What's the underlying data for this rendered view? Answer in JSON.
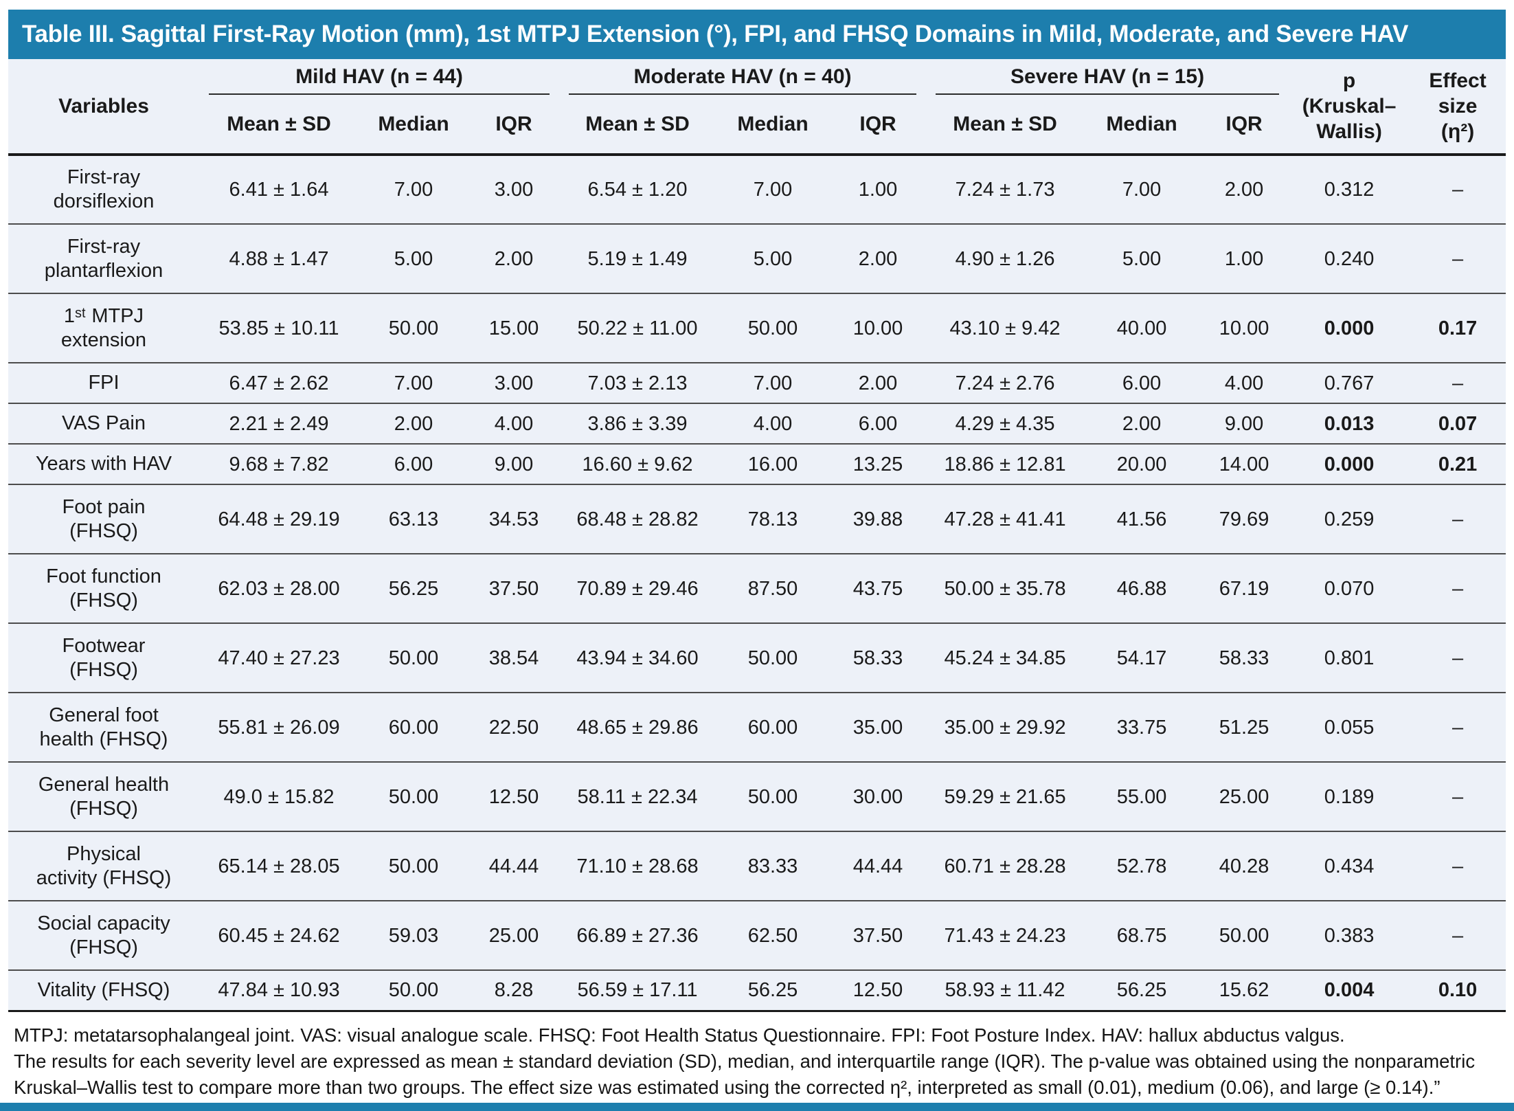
{
  "title": "Table III. Sagittal First-Ray Motion (mm), 1st MTPJ Extension (°), FPI, and FHSQ Domains in Mild, Moderate, and Severe HAV",
  "colors": {
    "accent_blue": "#1d7ead",
    "table_bg": "#edf1f8",
    "text": "#1a1a1a"
  },
  "header": {
    "variables": "Variables",
    "groups": [
      "Mild HAV (n = 44)",
      "Moderate HAV (n = 40)",
      "Severe HAV (n = 15)"
    ],
    "sub": [
      "Mean ± SD",
      "Median",
      "IQR"
    ],
    "p_lines": [
      "p",
      "(Kruskal–",
      "Wallis)"
    ],
    "effect_lines": [
      "Effect",
      "size",
      "(η²)"
    ]
  },
  "rows": [
    {
      "variable": "First-ray\ndorsiflexion",
      "mild": [
        "6.41 ± 1.64",
        "7.00",
        "3.00"
      ],
      "moderate": [
        "6.54 ± 1.20",
        "7.00",
        "1.00"
      ],
      "severe": [
        "7.24 ± 1.73",
        "7.00",
        "2.00"
      ],
      "p": "0.312",
      "effect": "–",
      "significant": false
    },
    {
      "variable": "First-ray\nplantarflexion",
      "mild": [
        "4.88 ± 1.47",
        "5.00",
        "2.00"
      ],
      "moderate": [
        "5.19 ± 1.49",
        "5.00",
        "2.00"
      ],
      "severe": [
        "4.90 ± 1.26",
        "5.00",
        "1.00"
      ],
      "p": "0.240",
      "effect": "–",
      "significant": false
    },
    {
      "variable": "1ˢᵗ MTPJ\nextension",
      "mild": [
        "53.85 ± 10.11",
        "50.00",
        "15.00"
      ],
      "moderate": [
        "50.22 ± 11.00",
        "50.00",
        "10.00"
      ],
      "severe": [
        "43.10 ± 9.42",
        "40.00",
        "10.00"
      ],
      "p": "0.000",
      "effect": "0.17",
      "significant": true
    },
    {
      "variable": "FPI",
      "mild": [
        "6.47 ± 2.62",
        "7.00",
        "3.00"
      ],
      "moderate": [
        "7.03 ± 2.13",
        "7.00",
        "2.00"
      ],
      "severe": [
        "7.24 ± 2.76",
        "6.00",
        "4.00"
      ],
      "p": "0.767",
      "effect": "–",
      "significant": false
    },
    {
      "variable": "VAS Pain",
      "mild": [
        "2.21 ± 2.49",
        "2.00",
        "4.00"
      ],
      "moderate": [
        "3.86 ± 3.39",
        "4.00",
        "6.00"
      ],
      "severe": [
        "4.29 ± 4.35",
        "2.00",
        "9.00"
      ],
      "p": "0.013",
      "effect": "0.07",
      "significant": true
    },
    {
      "variable": "Years with HAV",
      "mild": [
        "9.68 ± 7.82",
        "6.00",
        "9.00"
      ],
      "moderate": [
        "16.60 ± 9.62",
        "16.00",
        "13.25"
      ],
      "severe": [
        "18.86 ± 12.81",
        "20.00",
        "14.00"
      ],
      "p": "0.000",
      "effect": "0.21",
      "significant": true
    },
    {
      "variable": "Foot pain\n(FHSQ)",
      "mild": [
        "64.48 ± 29.19",
        "63.13",
        "34.53"
      ],
      "moderate": [
        "68.48 ± 28.82",
        "78.13",
        "39.88"
      ],
      "severe": [
        "47.28 ± 41.41",
        "41.56",
        "79.69"
      ],
      "p": "0.259",
      "effect": "–",
      "significant": false
    },
    {
      "variable": "Foot function\n(FHSQ)",
      "mild": [
        "62.03 ± 28.00",
        "56.25",
        "37.50"
      ],
      "moderate": [
        "70.89 ± 29.46",
        "87.50",
        "43.75"
      ],
      "severe": [
        "50.00 ± 35.78",
        "46.88",
        "67.19"
      ],
      "p": "0.070",
      "effect": "–",
      "significant": false
    },
    {
      "variable": "Footwear\n(FHSQ)",
      "mild": [
        "47.40 ± 27.23",
        "50.00",
        "38.54"
      ],
      "moderate": [
        "43.94 ± 34.60",
        "50.00",
        "58.33"
      ],
      "severe": [
        "45.24 ± 34.85",
        "54.17",
        "58.33"
      ],
      "p": "0.801",
      "effect": "–",
      "significant": false
    },
    {
      "variable": "General foot\nhealth (FHSQ)",
      "mild": [
        "55.81 ± 26.09",
        "60.00",
        "22.50"
      ],
      "moderate": [
        "48.65 ± 29.86",
        "60.00",
        "35.00"
      ],
      "severe": [
        "35.00 ± 29.92",
        "33.75",
        "51.25"
      ],
      "p": "0.055",
      "effect": "–",
      "significant": false
    },
    {
      "variable": "General health\n(FHSQ)",
      "mild": [
        "49.0 ± 15.82",
        "50.00",
        "12.50"
      ],
      "moderate": [
        "58.11 ± 22.34",
        "50.00",
        "30.00"
      ],
      "severe": [
        "59.29 ± 21.65",
        "55.00",
        "25.00"
      ],
      "p": "0.189",
      "effect": "–",
      "significant": false
    },
    {
      "variable": "Physical\nactivity (FHSQ)",
      "mild": [
        "65.14 ± 28.05",
        "50.00",
        "44.44"
      ],
      "moderate": [
        "71.10 ± 28.68",
        "83.33",
        "44.44"
      ],
      "severe": [
        "60.71 ± 28.28",
        "52.78",
        "40.28"
      ],
      "p": "0.434",
      "effect": "–",
      "significant": false
    },
    {
      "variable": "Social capacity\n(FHSQ)",
      "mild": [
        "60.45 ± 24.62",
        "59.03",
        "25.00"
      ],
      "moderate": [
        "66.89 ± 27.36",
        "62.50",
        "37.50"
      ],
      "severe": [
        "71.43 ± 24.23",
        "68.75",
        "50.00"
      ],
      "p": "0.383",
      "effect": "–",
      "significant": false
    },
    {
      "variable": "Vitality (FHSQ)",
      "mild": [
        "47.84 ± 10.93",
        "50.00",
        "8.28"
      ],
      "moderate": [
        "56.59 ± 17.11",
        "56.25",
        "12.50"
      ],
      "severe": [
        "58.93 ± 11.42",
        "56.25",
        "15.62"
      ],
      "p": "0.004",
      "effect": "0.10",
      "significant": true
    }
  ],
  "footnotes": [
    "MTPJ: metatarsophalangeal joint. VAS: visual analogue scale. FHSQ: Foot Health Status Questionnaire. FPI: Foot Posture Index. HAV: hallux abductus valgus.",
    "The results for each severity level are expressed as mean ± standard deviation (SD), median, and interquartile range (IQR). The p-value was obtained using the nonparametric",
    "Kruskal–Wallis test to compare more than two groups. The effect size was estimated using the corrected η², interpreted as small (0.01), medium (0.06), and large (≥ 0.14).”"
  ]
}
